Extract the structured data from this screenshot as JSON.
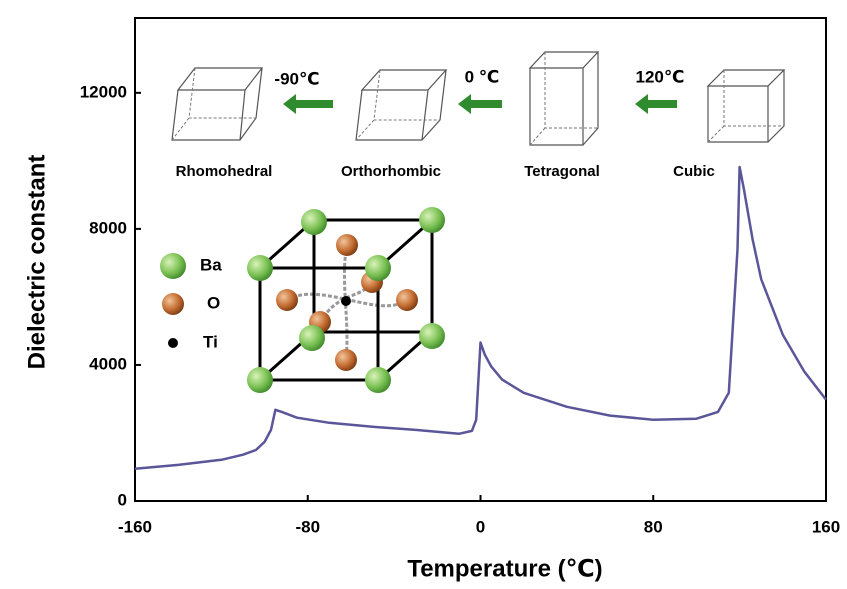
{
  "chart_data": {
    "type": "line",
    "x_label": "Temperature (℃)",
    "y_label": "Dielectric constant",
    "x": [
      -160,
      -140,
      -120,
      -110,
      -104,
      -100,
      -97,
      -95,
      -92,
      -85,
      -70,
      -50,
      -30,
      -10,
      -4,
      -2,
      0,
      2,
      5,
      10,
      20,
      40,
      60,
      80,
      100,
      110,
      115,
      119,
      120,
      122,
      126,
      130,
      140,
      150,
      160
    ],
    "values": [
      950,
      1060,
      1210,
      1360,
      1500,
      1740,
      2090,
      2680,
      2620,
      2450,
      2300,
      2180,
      2090,
      1975,
      2060,
      2390,
      4660,
      4300,
      3950,
      3570,
      3180,
      2770,
      2510,
      2390,
      2420,
      2620,
      3180,
      7400,
      9820,
      9170,
      7690,
      6520,
      4890,
      3800,
      2980
    ],
    "color": "#5a5699",
    "xlim": [
      -160,
      160
    ],
    "ylim": [
      0,
      14200
    ],
    "xticks": [
      -160,
      -80,
      0,
      80,
      160
    ],
    "yticks": [
      0,
      4000,
      8000,
      12000
    ],
    "annotations": {
      "phases": [
        "Rhomohedral",
        "Orthorhombic",
        "Tetragonal",
        "Cubic"
      ],
      "transitions": [
        "-90℃",
        "0 ℃",
        "120℃"
      ],
      "atoms": [
        "Ba",
        "O",
        "Ti"
      ]
    }
  }
}
